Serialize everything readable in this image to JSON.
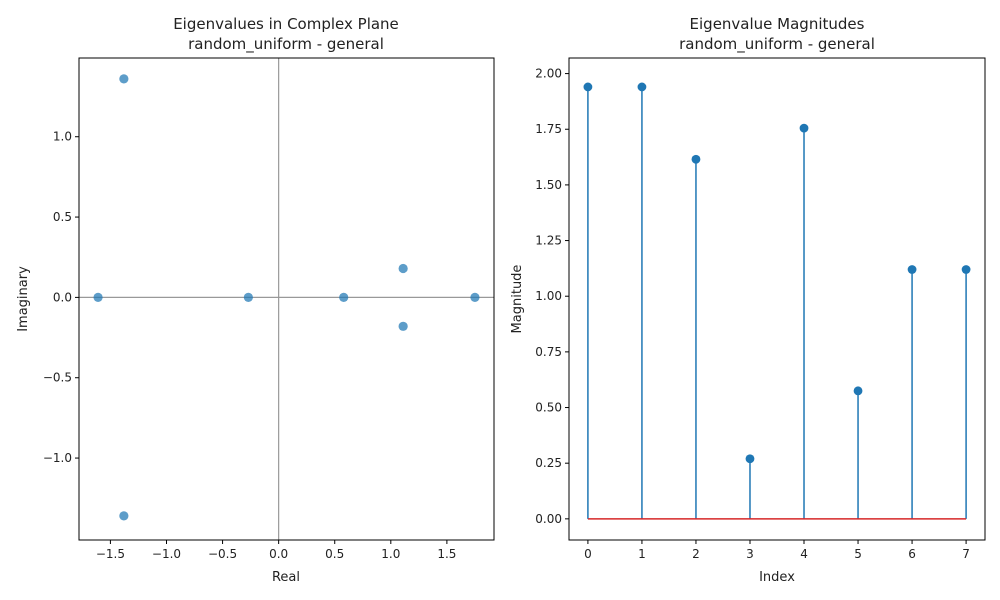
{
  "chart_data": [
    {
      "type": "scatter",
      "title_line1": "Eigenvalues in Complex Plane",
      "title_line2": "random_uniform - general",
      "xlabel": "Real",
      "ylabel": "Imaginary",
      "xlim": [
        -1.78,
        1.92
      ],
      "ylim": [
        -1.51,
        1.49
      ],
      "xticks": [
        -1.5,
        -1.0,
        -0.5,
        0.0,
        0.5,
        1.0,
        1.5
      ],
      "xtick_labels": [
        "−1.5",
        "−1.0",
        "−0.5",
        "0.0",
        "0.5",
        "1.0",
        "1.5"
      ],
      "yticks": [
        -1.0,
        -0.5,
        0.0,
        0.5,
        1.0
      ],
      "ytick_labels": [
        "−1.0",
        "−0.5",
        "0.0",
        "0.5",
        "1.0"
      ],
      "points": [
        {
          "x": -1.38,
          "y": 1.36
        },
        {
          "x": -1.38,
          "y": -1.36
        },
        {
          "x": -1.61,
          "y": 0.0
        },
        {
          "x": -0.27,
          "y": 0.0
        },
        {
          "x": 0.58,
          "y": 0.0
        },
        {
          "x": 1.11,
          "y": 0.18
        },
        {
          "x": 1.11,
          "y": -0.18
        },
        {
          "x": 1.75,
          "y": 0.0
        }
      ],
      "point_color": "#1f77b4",
      "axis_line_color": "#999999"
    },
    {
      "type": "stem",
      "title_line1": "Eigenvalue Magnitudes",
      "title_line2": "random_uniform - general",
      "xlabel": "Index",
      "ylabel": "Magnitude",
      "xlim": [
        -0.35,
        7.35
      ],
      "ylim": [
        -0.095,
        2.07
      ],
      "xticks": [
        0,
        1,
        2,
        3,
        4,
        5,
        6,
        7
      ],
      "xtick_labels": [
        "0",
        "1",
        "2",
        "3",
        "4",
        "5",
        "6",
        "7"
      ],
      "yticks": [
        0.0,
        0.25,
        0.5,
        0.75,
        1.0,
        1.25,
        1.5,
        1.75,
        2.0
      ],
      "ytick_labels": [
        "0.00",
        "0.25",
        "0.50",
        "0.75",
        "1.00",
        "1.25",
        "1.50",
        "1.75",
        "2.00"
      ],
      "x": [
        0,
        1,
        2,
        3,
        4,
        5,
        6,
        7
      ],
      "values": [
        1.94,
        1.94,
        1.615,
        0.27,
        1.755,
        0.575,
        1.12,
        1.12
      ],
      "stem_color": "#1f77b4",
      "baseline_color": "#d62728"
    }
  ]
}
